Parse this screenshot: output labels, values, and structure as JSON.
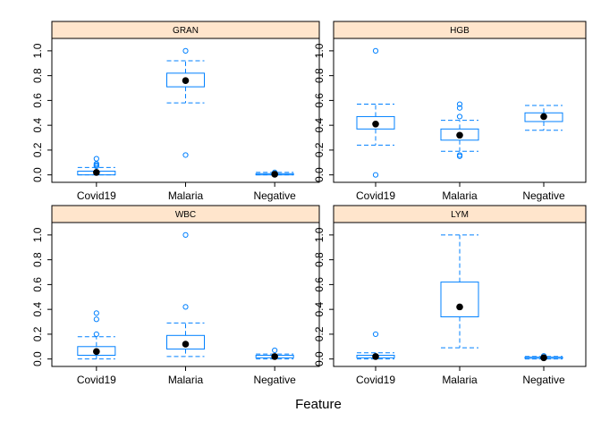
{
  "chart_data": {
    "type": "box",
    "layout": "2x2 lattice panels",
    "xlabel": "Feature",
    "ylim": [
      -0.06,
      1.1
    ],
    "y_ticks": [
      "0.0",
      "0.2",
      "0.4",
      "0.6",
      "0.8",
      "1.0"
    ],
    "categories": [
      "Covid19",
      "Malaria",
      "Negative"
    ],
    "colors": {
      "box": "#0080ff",
      "strip_bg": "#ffe5cc",
      "median_dot": "#000000",
      "frame": "#000000"
    },
    "panels": [
      {
        "title": "GRAN",
        "boxes": [
          {
            "category": "Covid19",
            "min": 0.0,
            "q1": 0.0,
            "median": 0.02,
            "q3": 0.03,
            "max": 0.06,
            "outliers": [
              0.07,
              0.08,
              0.09,
              0.13
            ]
          },
          {
            "category": "Malaria",
            "min": 0.58,
            "q1": 0.71,
            "median": 0.76,
            "q3": 0.82,
            "max": 0.92,
            "outliers": [
              1.0,
              0.16
            ]
          },
          {
            "category": "Negative",
            "min": 0.0,
            "q1": 0.0,
            "median": 0.005,
            "q3": 0.01,
            "max": 0.02,
            "outliers": [
              0.02
            ]
          }
        ]
      },
      {
        "title": "HGB",
        "boxes": [
          {
            "category": "Covid19",
            "min": 0.24,
            "q1": 0.37,
            "median": 0.41,
            "q3": 0.47,
            "max": 0.57,
            "outliers": [
              1.0,
              0.0
            ]
          },
          {
            "category": "Malaria",
            "min": 0.19,
            "q1": 0.28,
            "median": 0.32,
            "q3": 0.37,
            "max": 0.44,
            "outliers": [
              0.57,
              0.54,
              0.47,
              0.16,
              0.15
            ]
          },
          {
            "category": "Negative",
            "min": 0.36,
            "q1": 0.43,
            "median": 0.47,
            "q3": 0.5,
            "max": 0.56,
            "outliers": []
          }
        ]
      },
      {
        "title": "WBC",
        "boxes": [
          {
            "category": "Covid19",
            "min": 0.0,
            "q1": 0.03,
            "median": 0.06,
            "q3": 0.1,
            "max": 0.18,
            "outliers": [
              0.37,
              0.32,
              0.2
            ]
          },
          {
            "category": "Malaria",
            "min": 0.02,
            "q1": 0.08,
            "median": 0.12,
            "q3": 0.19,
            "max": 0.29,
            "outliers": [
              1.0,
              0.42
            ]
          },
          {
            "category": "Negative",
            "min": 0.0,
            "q1": 0.01,
            "median": 0.02,
            "q3": 0.03,
            "max": 0.04,
            "outliers": [
              0.07
            ]
          }
        ]
      },
      {
        "title": "LYM",
        "boxes": [
          {
            "category": "Covid19",
            "min": 0.0,
            "q1": 0.01,
            "median": 0.02,
            "q3": 0.03,
            "max": 0.05,
            "outliers": [
              0.2
            ]
          },
          {
            "category": "Malaria",
            "min": 0.09,
            "q1": 0.34,
            "median": 0.42,
            "q3": 0.62,
            "max": 1.0,
            "outliers": []
          },
          {
            "category": "Negative",
            "min": 0.0,
            "q1": 0.005,
            "median": 0.01,
            "q3": 0.015,
            "max": 0.02,
            "outliers": [
              0.025
            ]
          }
        ]
      }
    ]
  }
}
